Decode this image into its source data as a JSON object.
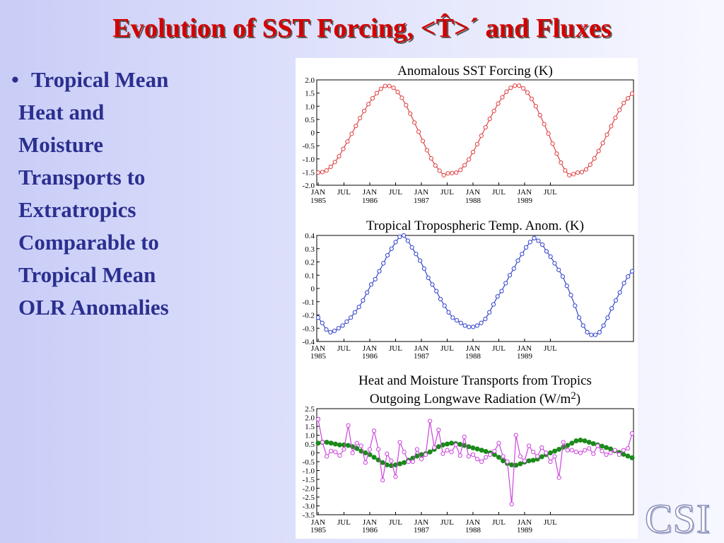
{
  "slide": {
    "title": "Evolution of SST Forcing, <T̂>´ and Fluxes",
    "bullet_symbol": "•",
    "bullet_lines": [
      "Tropical Mean",
      "Heat and",
      "Moisture",
      "Transports to",
      "Extratropics",
      "Comparable to",
      "Tropical Mean",
      "OLR Anomalies"
    ],
    "logo": "CSI"
  },
  "chart_data": [
    {
      "type": "line",
      "title": "Anomalous SST Forcing (K)",
      "x_tick_labels": [
        "JAN|1985",
        "JUL",
        "JAN|1986",
        "JUL",
        "JAN|1987",
        "JUL",
        "JAN|1988",
        "JUL",
        "JAN|1989",
        "JUL"
      ],
      "x_range_months": [
        0,
        59
      ],
      "ylim": [
        -2.0,
        2.0
      ],
      "y_ticks": [
        "2.0",
        "1.5",
        "1.0",
        "0.5",
        "0",
        "-0.5",
        "-1.0",
        "-1.5",
        "-2.0"
      ],
      "series": [
        {
          "color": "#e04040",
          "marker": "open-circle",
          "values": [
            -1.52,
            -1.5,
            -1.44,
            -1.3,
            -1.12,
            -0.9,
            -0.62,
            -0.34,
            -0.05,
            0.25,
            0.55,
            0.82,
            1.08,
            1.3,
            1.5,
            1.66,
            1.77,
            1.77,
            1.7,
            1.54,
            1.32,
            1.04,
            0.72,
            0.38,
            0.03,
            -0.32,
            -0.67,
            -0.98,
            -1.25,
            -1.45,
            -1.62,
            -1.55,
            -1.54,
            -1.52,
            -1.42,
            -1.24,
            -1.02,
            -0.74,
            -0.44,
            -0.12,
            0.2,
            0.52,
            0.82,
            1.1,
            1.34,
            1.55,
            1.7,
            1.78,
            1.78,
            1.68,
            1.52,
            1.28,
            1.0,
            0.66,
            0.32,
            -0.04,
            -0.42,
            -0.8,
            -1.14,
            -1.44,
            -1.62,
            -1.58,
            -1.52,
            -1.5,
            -1.4,
            -1.22,
            -0.98,
            -0.7,
            -0.4,
            -0.08,
            0.24,
            0.56,
            0.86,
            1.12,
            1.3,
            1.48
          ]
        }
      ]
    },
    {
      "type": "line",
      "title": "Tropical Tropospheric Temp. Anom. (K)",
      "x_tick_labels": [
        "JAN|1985",
        "JUL",
        "JAN|1986",
        "JUL",
        "JAN|1987",
        "JUL",
        "JAN|1988",
        "JUL",
        "JAN|1989",
        "JUL"
      ],
      "ylim": [
        -0.4,
        0.4
      ],
      "y_ticks": [
        "0.4",
        "0.3",
        "0.2",
        "0.1",
        "0",
        "-0.1",
        "-0.2",
        "-0.3",
        "-0.4"
      ],
      "series": [
        {
          "color": "#3344cc",
          "marker": "open-circle",
          "values": [
            -0.22,
            -0.26,
            -0.31,
            -0.33,
            -0.32,
            -0.3,
            -0.28,
            -0.25,
            -0.22,
            -0.18,
            -0.14,
            -0.09,
            -0.03,
            0.03,
            0.07,
            0.13,
            0.19,
            0.25,
            0.3,
            0.35,
            0.39,
            0.4,
            0.36,
            0.31,
            0.26,
            0.21,
            0.15,
            0.08,
            0.03,
            -0.02,
            -0.08,
            -0.13,
            -0.18,
            -0.22,
            -0.24,
            -0.26,
            -0.28,
            -0.29,
            -0.29,
            -0.28,
            -0.26,
            -0.23,
            -0.18,
            -0.12,
            -0.06,
            -0.02,
            0.04,
            0.1,
            0.15,
            0.21,
            0.26,
            0.31,
            0.35,
            0.38,
            0.36,
            0.33,
            0.28,
            0.24,
            0.19,
            0.14,
            0.09,
            0.02,
            -0.05,
            -0.13,
            -0.22,
            -0.28,
            -0.33,
            -0.35,
            -0.35,
            -0.33,
            -0.28,
            -0.22,
            -0.15,
            -0.09,
            -0.03,
            0.04,
            0.09,
            0.13
          ]
        }
      ]
    },
    {
      "type": "line",
      "title": "Heat and Moisture Transports from Tropics",
      "subtitle": "Outgoing Longwave Radiation (W/m",
      "subtitle_sup": "2",
      "subtitle_end": ")",
      "x_tick_labels": [
        "JAN|1985",
        "JUL",
        "JAN|1986",
        "JUL",
        "JAN|1987",
        "JUL",
        "JAN|1988",
        "JUL",
        "JAN|1989",
        "JUL"
      ],
      "ylim": [
        -3.5,
        2.5
      ],
      "y_ticks": [
        "2.5",
        "2.0",
        "1.5",
        "1.0",
        "0.5",
        "0",
        "-0.5",
        "-1.0",
        "-1.5",
        "-2.0",
        "-2.5",
        "-3.0",
        "-3.5"
      ],
      "series": [
        {
          "color": "#1a8a1a",
          "marker": "filled-circle",
          "values": [
            0.55,
            0.6,
            0.6,
            0.55,
            0.5,
            0.45,
            0.45,
            0.42,
            0.35,
            0.25,
            0.1,
            0.0,
            -0.1,
            -0.25,
            -0.4,
            -0.55,
            -0.68,
            -0.72,
            -0.68,
            -0.62,
            -0.55,
            -0.42,
            -0.3,
            -0.18,
            -0.1,
            -0.05,
            0.05,
            0.2,
            0.35,
            0.45,
            0.5,
            0.55,
            0.52,
            0.48,
            0.42,
            0.35,
            0.28,
            0.22,
            0.15,
            0.08,
            0.0,
            -0.1,
            -0.25,
            -0.45,
            -0.6,
            -0.68,
            -0.7,
            -0.62,
            -0.52,
            -0.45,
            -0.42,
            -0.35,
            -0.22,
            -0.1,
            0.0,
            0.1,
            0.2,
            0.32,
            0.42,
            0.55,
            0.68,
            0.72,
            0.68,
            0.6,
            0.52,
            0.45,
            0.38,
            0.3,
            0.22,
            0.12,
            0.02,
            -0.08,
            -0.18,
            -0.28
          ]
        },
        {
          "color": "#cc44dd",
          "marker": "open-circle",
          "values": [
            1.9,
            0.6,
            -0.2,
            0.1,
            0.05,
            -0.15,
            0.2,
            1.55,
            0.0,
            0.55,
            0.4,
            -0.55,
            0.2,
            1.25,
            0.2,
            -1.55,
            -0.05,
            -0.45,
            -1.35,
            0.6,
            0.05,
            -0.5,
            -0.5,
            0.2,
            -0.35,
            -0.1,
            1.8,
            0.3,
            1.3,
            -0.05,
            0.15,
            0.05,
            0.45,
            -0.15,
            0.9,
            -0.2,
            -0.1,
            -0.35,
            -0.5,
            -0.25,
            -0.1,
            0.1,
            0.55,
            -0.2,
            -0.5,
            -2.9,
            1.0,
            -0.2,
            -0.45,
            0.4,
            0.05,
            -0.2,
            0.3,
            0.0,
            -0.5,
            -0.2,
            -1.4,
            0.6,
            0.15,
            0.15,
            0.05,
            0.0,
            0.15,
            0.25,
            -0.05,
            0.4,
            0.1,
            -0.1,
            0.0,
            0.15,
            -0.1,
            0.15,
            0.25,
            1.1
          ]
        }
      ]
    }
  ]
}
